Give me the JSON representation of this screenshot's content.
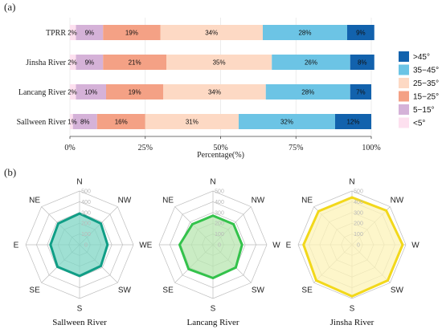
{
  "panels": {
    "a": "(a)",
    "b": "(b)"
  },
  "chart_data": [
    {
      "type": "bar",
      "orientation": "horizontal",
      "stacked": true,
      "categories": [
        "TPRR",
        "Jinsha River",
        "Lancang River",
        "Sallween River"
      ],
      "series": [
        {
          "name": "<5°",
          "color": "#fde0ef",
          "values": [
            2,
            2,
            2,
            1
          ]
        },
        {
          "name": "5−15°",
          "color": "#d5b2d8",
          "values": [
            9,
            9,
            10,
            8
          ]
        },
        {
          "name": "15−25°",
          "color": "#f4a185",
          "values": [
            19,
            21,
            19,
            16
          ]
        },
        {
          "name": "25−35°",
          "color": "#fdd9c4",
          "values": [
            34,
            35,
            34,
            31
          ]
        },
        {
          "name": "35−45°",
          "color": "#6cc4e5",
          "values": [
            28,
            26,
            28,
            32
          ]
        },
        {
          "name": ">45°",
          "color": "#1262ad",
          "values": [
            9,
            8,
            7,
            12
          ]
        }
      ],
      "xlabel": "Percentage(%)",
      "xlim": [
        0,
        100
      ],
      "xticks": [
        "0%",
        "25%",
        "50%",
        "75%",
        "100%"
      ],
      "legend_position": "right",
      "data_label_suffix": "%"
    },
    {
      "type": "radar",
      "directions": [
        "N",
        "NW",
        "W",
        "SW",
        "S",
        "SE",
        "E",
        "NE"
      ],
      "rings": [
        "0",
        "100",
        "200",
        "300",
        "400",
        "500"
      ],
      "rlim": [
        0,
        500
      ],
      "charts": [
        {
          "title": "Sallween River",
          "color": "#109e86",
          "fill": "#7fd5c4",
          "values": [
            290,
            280,
            260,
            280,
            290,
            290,
            270,
            280
          ]
        },
        {
          "title": "Lancang River",
          "color": "#33c24b",
          "fill": "#b8e6b0",
          "values": [
            270,
            270,
            270,
            300,
            310,
            320,
            310,
            270
          ]
        },
        {
          "title": "Jinsha River",
          "color": "#f2d81b",
          "fill": "#fcf3b8",
          "values": [
            440,
            450,
            470,
            470,
            480,
            470,
            450,
            440
          ]
        }
      ]
    }
  ]
}
